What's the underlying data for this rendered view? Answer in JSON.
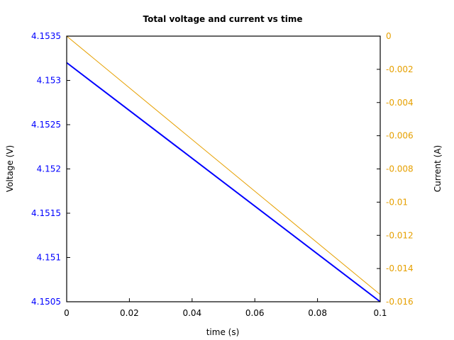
{
  "chart_data": {
    "type": "line",
    "title": "Total voltage and current vs time",
    "xlabel": "time (s)",
    "ylabel": "Voltage (V)",
    "y2label": "Current (A)",
    "xlim": [
      0,
      0.1
    ],
    "ylim": [
      4.1505,
      4.1535
    ],
    "y2lim": [
      -0.016,
      0
    ],
    "x_ticks": [
      "0",
      "0.02",
      "0.04",
      "0.06",
      "0.08",
      "0.1"
    ],
    "y_ticks": [
      "4.1505",
      "4.151",
      "4.1515",
      "4.152",
      "4.1525",
      "4.153",
      "4.1535"
    ],
    "y2_ticks": [
      "-0.016",
      "-0.014",
      "-0.012",
      "-0.01",
      "-0.008",
      "-0.006",
      "-0.004",
      "-0.002",
      "0"
    ],
    "grid": false,
    "series": [
      {
        "name": "Voltage",
        "axis": "left",
        "color": "#0000ff",
        "x": [
          0,
          0.1
        ],
        "values": [
          4.1532,
          4.1505
        ]
      },
      {
        "name": "Current",
        "axis": "right",
        "color": "#e6a000",
        "x": [
          0,
          0.1
        ],
        "values": [
          0,
          -0.01557
        ]
      }
    ]
  },
  "colors": {
    "voltage": "#0000ff",
    "current": "#e6a000",
    "axis": "#000000"
  }
}
